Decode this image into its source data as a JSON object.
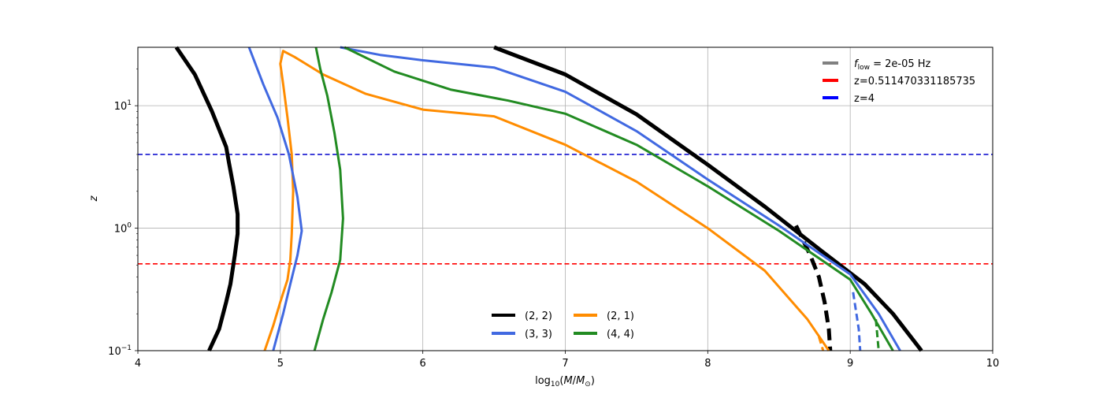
{
  "chart_data": {
    "type": "line",
    "title": "",
    "xlabel": "log$_{10}(M/M_{\\odot})$",
    "ylabel": "z",
    "xlim": [
      4,
      10
    ],
    "ylim": [
      0.1,
      30
    ],
    "yscale": "log",
    "grid": true,
    "x_ticks": [
      "4",
      "5",
      "6",
      "7",
      "8",
      "9",
      "10"
    ],
    "y_ticks": [
      {
        "value": 0.1,
        "base": "10",
        "exp": "−1"
      },
      {
        "value": 1,
        "base": "10",
        "exp": "0"
      },
      {
        "value": 10,
        "base": "10",
        "exp": "1"
      }
    ],
    "hlines": [
      {
        "name": "z=0.511470331185735",
        "y": 0.511470331185735,
        "color": "#ff0000"
      },
      {
        "name": "z=4",
        "y": 4,
        "color": "#0000cc"
      }
    ],
    "legend_top": {
      "placement": "upper-right",
      "entries": [
        {
          "prefix": "f",
          "sub": "low",
          "suffix": " = 2e-05 Hz",
          "color": "#808080"
        },
        {
          "text": "z=0.511470331185735",
          "color": "#ff0000"
        },
        {
          "text": "z=4",
          "color": "#0000ff"
        }
      ]
    },
    "legend_bottom": {
      "placement": "lower-center",
      "entries": [
        {
          "text": "(2, 2)",
          "color": "#000000"
        },
        {
          "text": "(2, 1)",
          "color": "#ff8c00"
        },
        {
          "text": "(3, 3)",
          "color": "#4169e1"
        },
        {
          "text": "(4, 4)",
          "color": "#228b22"
        }
      ]
    },
    "series": [
      {
        "name": "(2, 2)",
        "color": "#000000",
        "width": 5,
        "segments": [
          {
            "dashed": false,
            "points": [
              [
                4.27,
                30
              ],
              [
                4.4,
                18
              ],
              [
                4.52,
                9
              ],
              [
                4.62,
                4.6
              ],
              [
                4.64,
                3.4
              ],
              [
                4.67,
                2.2
              ],
              [
                4.7,
                1.3
              ],
              [
                4.7,
                0.9
              ],
              [
                4.68,
                0.6
              ],
              [
                4.65,
                0.35
              ],
              [
                4.62,
                0.25
              ],
              [
                4.57,
                0.15
              ],
              [
                4.5,
                0.1
              ]
            ]
          },
          {
            "dashed": false,
            "points": [
              [
                6.5,
                30
              ],
              [
                7.0,
                18
              ],
              [
                7.5,
                8.5
              ],
              [
                8.0,
                3.3
              ],
              [
                8.4,
                1.5
              ],
              [
                8.8,
                0.65
              ],
              [
                9.1,
                0.35
              ],
              [
                9.3,
                0.2
              ],
              [
                9.5,
                0.1
              ]
            ]
          },
          {
            "dashed": true,
            "points": [
              [
                8.62,
                1.05
              ],
              [
                8.72,
                0.6
              ],
              [
                8.78,
                0.4
              ],
              [
                8.82,
                0.25
              ],
              [
                8.85,
                0.15
              ],
              [
                8.86,
                0.1
              ]
            ]
          }
        ]
      },
      {
        "name": "(2, 1)",
        "color": "#ff8c00",
        "width": 3,
        "segments": [
          {
            "dashed": false,
            "points": [
              [
                4.89,
                0.1
              ],
              [
                4.95,
                0.16
              ],
              [
                5.0,
                0.25
              ],
              [
                5.05,
                0.38
              ],
              [
                5.07,
                0.55
              ],
              [
                5.08,
                0.9
              ],
              [
                5.09,
                2
              ],
              [
                5.08,
                4
              ],
              [
                5.05,
                8
              ],
              [
                5.02,
                15
              ],
              [
                5.0,
                22
              ],
              [
                5.02,
                28
              ],
              [
                5.1,
                25
              ],
              [
                5.3,
                18
              ],
              [
                5.6,
                12.5
              ],
              [
                6.0,
                9.3
              ],
              [
                6.5,
                8.2
              ],
              [
                7.0,
                4.8
              ],
              [
                7.5,
                2.4
              ],
              [
                8.0,
                1.0
              ],
              [
                8.4,
                0.45
              ],
              [
                8.7,
                0.18
              ],
              [
                8.85,
                0.1
              ]
            ]
          },
          {
            "dashed": true,
            "points": [
              [
                8.78,
                0.13
              ],
              [
                8.81,
                0.1
              ]
            ]
          }
        ]
      },
      {
        "name": "(3, 3)",
        "color": "#4169e1",
        "width": 3,
        "segments": [
          {
            "dashed": false,
            "points": [
              [
                4.95,
                0.1
              ],
              [
                5.02,
                0.2
              ],
              [
                5.07,
                0.35
              ],
              [
                5.12,
                0.6
              ],
              [
                5.15,
                0.95
              ],
              [
                5.12,
                1.8
              ],
              [
                5.06,
                4
              ],
              [
                4.98,
                8
              ],
              [
                4.88,
                15
              ],
              [
                4.78,
                30
              ]
            ]
          },
          {
            "dashed": false,
            "points": [
              [
                5.42,
                30
              ],
              [
                5.7,
                26
              ],
              [
                6.0,
                23.5
              ],
              [
                6.5,
                20.5
              ],
              [
                7.0,
                13
              ],
              [
                7.5,
                6.2
              ],
              [
                8.0,
                2.5
              ],
              [
                8.5,
                1.05
              ],
              [
                9.0,
                0.42
              ],
              [
                9.2,
                0.2
              ],
              [
                9.35,
                0.1
              ]
            ]
          },
          {
            "dashed": true,
            "points": [
              [
                9.02,
                0.3
              ],
              [
                9.06,
                0.15
              ],
              [
                9.07,
                0.1
              ]
            ]
          }
        ]
      },
      {
        "name": "(4, 4)",
        "color": "#228b22",
        "width": 3,
        "segments": [
          {
            "dashed": false,
            "points": [
              [
                5.24,
                0.1
              ],
              [
                5.3,
                0.18
              ],
              [
                5.36,
                0.3
              ],
              [
                5.42,
                0.55
              ],
              [
                5.44,
                1.2
              ],
              [
                5.42,
                3
              ],
              [
                5.38,
                6
              ],
              [
                5.33,
                12
              ],
              [
                5.28,
                20
              ],
              [
                5.25,
                30
              ]
            ]
          },
          {
            "dashed": false,
            "points": [
              [
                5.45,
                30
              ],
              [
                5.8,
                19
              ],
              [
                6.2,
                13.5
              ],
              [
                6.6,
                11
              ],
              [
                7.0,
                8.6
              ],
              [
                7.5,
                4.8
              ],
              [
                8.0,
                2.2
              ],
              [
                8.5,
                0.95
              ],
              [
                9.0,
                0.38
              ],
              [
                9.15,
                0.2
              ],
              [
                9.3,
                0.1
              ]
            ]
          },
          {
            "dashed": true,
            "points": [
              [
                9.18,
                0.18
              ],
              [
                9.2,
                0.1
              ]
            ]
          }
        ]
      }
    ]
  }
}
